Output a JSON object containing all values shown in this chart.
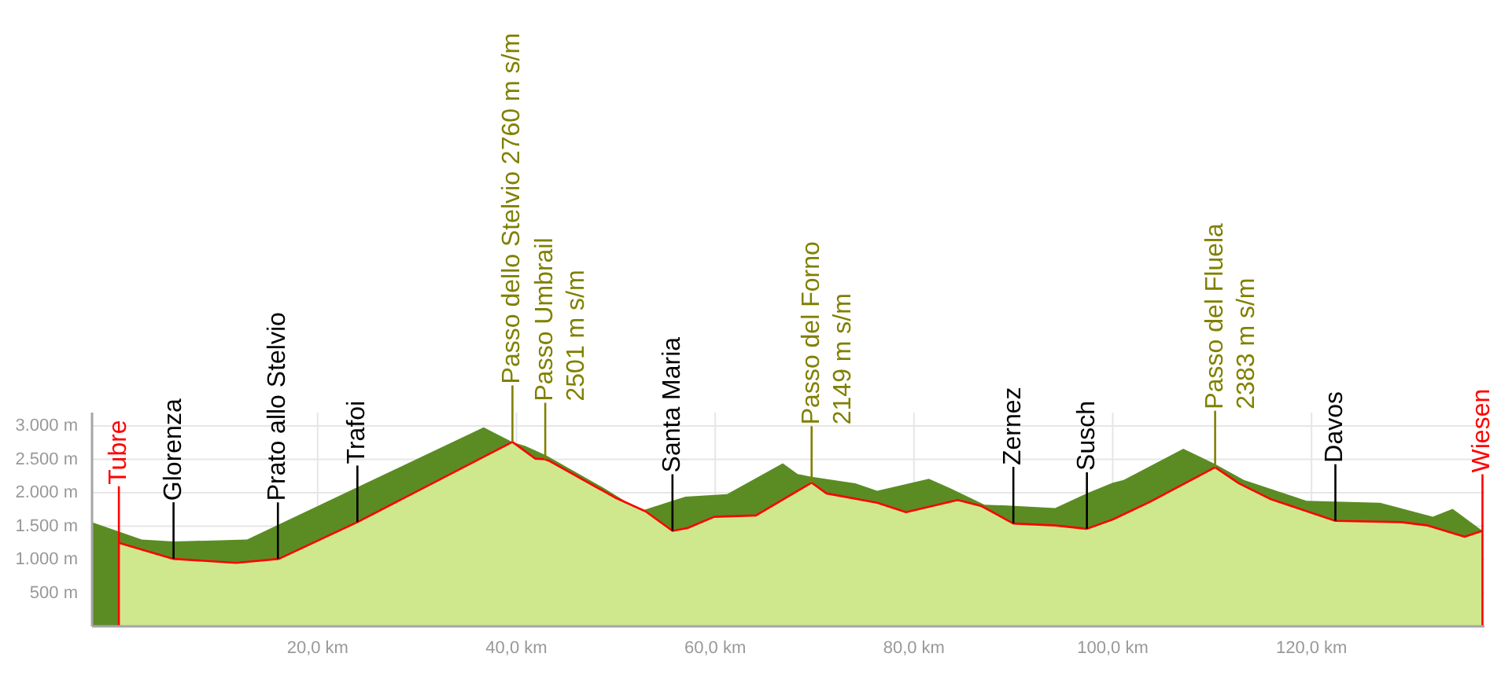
{
  "chart_data": {
    "type": "area",
    "xlim": [
      -2.7,
      137.4
    ],
    "ylim": [
      0,
      3200
    ],
    "xticks": [
      {
        "value": 20,
        "label": "20,0 km"
      },
      {
        "value": 40,
        "label": "40,0 km"
      },
      {
        "value": 60,
        "label": "60,0 km"
      },
      {
        "value": 80,
        "label": "80,0 km"
      },
      {
        "value": 100,
        "label": "100,0 km"
      },
      {
        "value": 120,
        "label": "120,0 km"
      }
    ],
    "yticks": [
      {
        "value": 500,
        "label": "500 m"
      },
      {
        "value": 1000,
        "label": "1.000 m"
      },
      {
        "value": 1500,
        "label": "1.500 m"
      },
      {
        "value": 2000,
        "label": "2.000 m"
      },
      {
        "value": 2500,
        "label": "2.500 m"
      },
      {
        "value": 3000,
        "label": "3.000 m"
      }
    ],
    "grid": true,
    "series": [
      {
        "color": "#5b8c24",
        "x": [
          -2.7,
          2.3,
          5.5,
          12.9,
          36.7,
          39.6,
          40.9,
          43.0,
          48.8,
          51.2,
          52.8,
          55.7,
          57.0,
          61.2,
          66.8,
          68.3,
          69.6,
          74.1,
          76.3,
          81.5,
          83.6,
          87.1,
          89.4,
          94.2,
          97.4,
          100.0,
          101.1,
          107.1,
          110.3,
          113.2,
          119.5,
          126.9,
          132.2,
          134.2,
          137.2
        ],
        "values": [
          1560,
          1300,
          1270,
          1300,
          2980,
          2760,
          2700,
          2560,
          2070,
          1850,
          1740,
          1880,
          1940,
          1980,
          2440,
          2280,
          2240,
          2140,
          2030,
          2210,
          2070,
          1820,
          1810,
          1770,
          1990,
          2150,
          2190,
          2660,
          2430,
          2190,
          1880,
          1850,
          1640,
          1760,
          1430
        ]
      },
      {
        "color": "#cfe88e",
        "x": [
          0,
          5.5,
          11.8,
          16.1,
          24.0,
          39.6,
          41.9,
          42.9,
          43.4,
          49.9,
          53.0,
          55.7,
          57.2,
          59.9,
          64.1,
          69.7,
          71.2,
          76.3,
          79.2,
          84.4,
          86.8,
          90.0,
          94.2,
          97.4,
          100.0,
          103.7,
          110.3,
          112.7,
          115.8,
          122.4,
          129.0,
          131.7,
          135.4,
          137.2
        ],
        "values": [
          1250,
          1010,
          950,
          1010,
          1560,
          2760,
          2510,
          2500,
          2470,
          1930,
          1720,
          1430,
          1470,
          1640,
          1660,
          2150,
          1990,
          1850,
          1710,
          1890,
          1800,
          1540,
          1510,
          1460,
          1600,
          1860,
          2380,
          2140,
          1910,
          1580,
          1560,
          1510,
          1340,
          1430
        ]
      },
      {
        "type": "line",
        "color": "#ff0000",
        "x": [
          0,
          5.5,
          11.8,
          16.1,
          24.0,
          39.6,
          41.9,
          42.9,
          43.4,
          49.9,
          53.0,
          55.7,
          57.2,
          59.9,
          64.1,
          69.7,
          71.2,
          76.3,
          79.2,
          84.4,
          86.8,
          90.0,
          94.2,
          97.4,
          100.0,
          103.7,
          110.3,
          112.7,
          115.8,
          122.4,
          129.0,
          131.7,
          135.4,
          137.2
        ],
        "values": [
          1250,
          1010,
          950,
          1010,
          1560,
          2760,
          2510,
          2500,
          2470,
          1930,
          1720,
          1430,
          1470,
          1640,
          1660,
          2150,
          1990,
          1850,
          1710,
          1890,
          1800,
          1540,
          1510,
          1460,
          1600,
          1860,
          2380,
          2140,
          1910,
          1580,
          1560,
          1510,
          1340,
          1430
        ]
      }
    ],
    "ref_lines": [
      {
        "axis": "x",
        "value": 0,
        "label": "Tubre",
        "color": "#ff0000"
      },
      {
        "axis": "x",
        "value": 5.5,
        "label": "Glorenza",
        "color": "#000000"
      },
      {
        "axis": "x",
        "value": 16.0,
        "label": "Prato allo Stelvio",
        "color": "#000000"
      },
      {
        "axis": "x",
        "value": 24.0,
        "label": "Trafoi",
        "color": "#000000"
      },
      {
        "axis": "x",
        "value": 39.6,
        "label": "Passo dello Stelvio 2760 m s/m",
        "color": "#808000"
      },
      {
        "axis": "x",
        "value": 42.9,
        "label": "Passo Umbrail\n2501 m s/m",
        "color": "#808000"
      },
      {
        "axis": "x",
        "value": 55.7,
        "label": "Santa Maria",
        "color": "#000000"
      },
      {
        "axis": "x",
        "value": 69.7,
        "label": "Passo del Forno\n2149 m s/m",
        "color": "#808000"
      },
      {
        "axis": "x",
        "value": 90.0,
        "label": "Zernez",
        "color": "#000000"
      },
      {
        "axis": "x",
        "value": 97.4,
        "label": "Susch",
        "color": "#000000"
      },
      {
        "axis": "x",
        "value": 110.3,
        "label": "Passo del Fluela\n2383 m s/m",
        "color": "#808000"
      },
      {
        "axis": "x",
        "value": 122.4,
        "label": "Davos",
        "color": "#000000"
      },
      {
        "axis": "x",
        "value": 137.2,
        "label": "Wiesen",
        "color": "#ff0000"
      }
    ]
  }
}
